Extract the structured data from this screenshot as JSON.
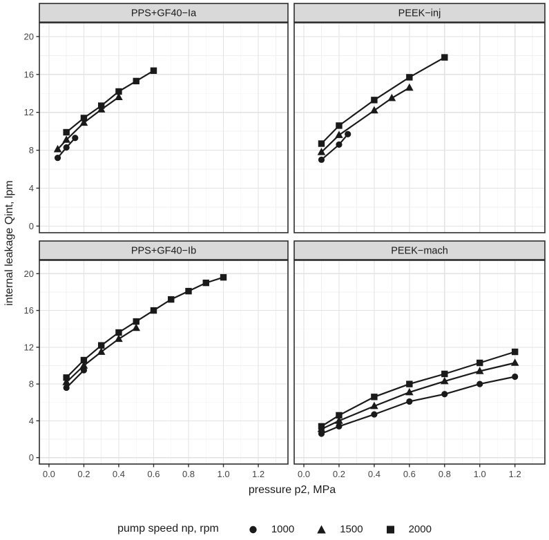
{
  "figure": {
    "y_axis_title": "internal leakage Qint, lpm",
    "x_axis_title": "pressure p2, MPa"
  },
  "legend": {
    "title": "pump speed np, rpm",
    "position": "bottom",
    "items": [
      {
        "marker": "circle",
        "label": "1000"
      },
      {
        "marker": "triangle",
        "label": "1500"
      },
      {
        "marker": "square",
        "label": "2000"
      }
    ]
  },
  "colors": {
    "foreground": "#1a1a1a",
    "strip_fill": "#d9d9d9",
    "panel_fill": "#ffffff",
    "panel_border": "#2b2b2b",
    "grid_major": "#e2e2e2",
    "grid_minor": "#f0f0f0",
    "tick_label": "#444444"
  },
  "chart_data": {
    "type": "line",
    "facet_by": "material",
    "grid": "on",
    "legend_position": "bottom",
    "x": {
      "label": "pressure p2, MPa",
      "domain": [
        -0.055,
        1.37
      ],
      "tick_values": [
        0,
        0.2,
        0.4,
        0.6,
        0.8,
        1.0,
        1.2
      ],
      "tick_labels": [
        "0.0",
        "0.2",
        "0.4",
        "0.6",
        "0.8",
        "1.0",
        "1.2"
      ],
      "minor_values": [
        0.1,
        0.3,
        0.5,
        0.7,
        0.9,
        1.1,
        1.3
      ]
    },
    "y": {
      "label": "internal leakage Qint, lpm",
      "domain": [
        -0.7,
        21.45
      ],
      "tick_values": [
        0,
        4,
        8,
        12,
        16,
        20
      ],
      "tick_labels": [
        "0",
        "4",
        "8",
        "12",
        "16",
        "20"
      ],
      "minor_values": [
        2,
        6,
        10,
        14,
        18
      ]
    },
    "facets": [
      {
        "title": "PPS+GF40−Ia",
        "series": [
          {
            "name": "1000",
            "marker": "circle",
            "points": [
              [
                0.05,
                7.2
              ],
              [
                0.1,
                8.3
              ],
              [
                0.15,
                9.3
              ]
            ]
          },
          {
            "name": "1500",
            "marker": "triangle",
            "points": [
              [
                0.05,
                8.1
              ],
              [
                0.1,
                9.1
              ],
              [
                0.2,
                10.9
              ],
              [
                0.3,
                12.3
              ],
              [
                0.4,
                13.6
              ]
            ]
          },
          {
            "name": "2000",
            "marker": "square",
            "points": [
              [
                0.1,
                9.9
              ],
              [
                0.2,
                11.4
              ],
              [
                0.3,
                12.7
              ],
              [
                0.4,
                14.2
              ],
              [
                0.5,
                15.3
              ],
              [
                0.6,
                16.4
              ]
            ]
          }
        ]
      },
      {
        "title": "PEEK−inj",
        "series": [
          {
            "name": "1000",
            "marker": "circle",
            "points": [
              [
                0.1,
                7.0
              ],
              [
                0.2,
                8.6
              ],
              [
                0.25,
                9.7
              ]
            ]
          },
          {
            "name": "1500",
            "marker": "triangle",
            "points": [
              [
                0.1,
                7.8
              ],
              [
                0.2,
                9.6
              ],
              [
                0.4,
                12.2
              ],
              [
                0.5,
                13.5
              ],
              [
                0.6,
                14.6
              ]
            ]
          },
          {
            "name": "2000",
            "marker": "square",
            "points": [
              [
                0.1,
                8.7
              ],
              [
                0.2,
                10.6
              ],
              [
                0.4,
                13.3
              ],
              [
                0.6,
                15.7
              ],
              [
                0.8,
                17.8
              ]
            ]
          }
        ]
      },
      {
        "title": "PPS+GF40−Ib",
        "series": [
          {
            "name": "1000",
            "marker": "circle",
            "points": [
              [
                0.1,
                7.6
              ],
              [
                0.2,
                9.5
              ]
            ]
          },
          {
            "name": "1500",
            "marker": "triangle",
            "points": [
              [
                0.1,
                8.2
              ],
              [
                0.2,
                10.0
              ],
              [
                0.3,
                11.5
              ],
              [
                0.4,
                12.9
              ],
              [
                0.5,
                14.1
              ]
            ]
          },
          {
            "name": "2000",
            "marker": "square",
            "points": [
              [
                0.1,
                8.7
              ],
              [
                0.2,
                10.6
              ],
              [
                0.3,
                12.2
              ],
              [
                0.4,
                13.6
              ],
              [
                0.5,
                14.8
              ],
              [
                0.6,
                16.0
              ],
              [
                0.7,
                17.2
              ],
              [
                0.8,
                18.1
              ],
              [
                0.9,
                19.0
              ],
              [
                1.0,
                19.6
              ]
            ]
          }
        ]
      },
      {
        "title": "PEEK−mach",
        "series": [
          {
            "name": "1000",
            "marker": "circle",
            "points": [
              [
                0.1,
                2.6
              ],
              [
                0.2,
                3.4
              ],
              [
                0.4,
                4.7
              ],
              [
                0.6,
                6.1
              ],
              [
                0.8,
                6.9
              ],
              [
                1.0,
                8.0
              ],
              [
                1.2,
                8.8
              ]
            ]
          },
          {
            "name": "1500",
            "marker": "triangle",
            "points": [
              [
                0.1,
                3.1
              ],
              [
                0.2,
                4.0
              ],
              [
                0.4,
                5.6
              ],
              [
                0.6,
                7.1
              ],
              [
                0.8,
                8.3
              ],
              [
                1.0,
                9.4
              ],
              [
                1.2,
                10.3
              ]
            ]
          },
          {
            "name": "2000",
            "marker": "square",
            "points": [
              [
                0.1,
                3.4
              ],
              [
                0.2,
                4.6
              ],
              [
                0.4,
                6.6
              ],
              [
                0.6,
                8.0
              ],
              [
                0.8,
                9.1
              ],
              [
                1.0,
                10.3
              ],
              [
                1.2,
                11.5
              ]
            ]
          }
        ]
      }
    ]
  }
}
